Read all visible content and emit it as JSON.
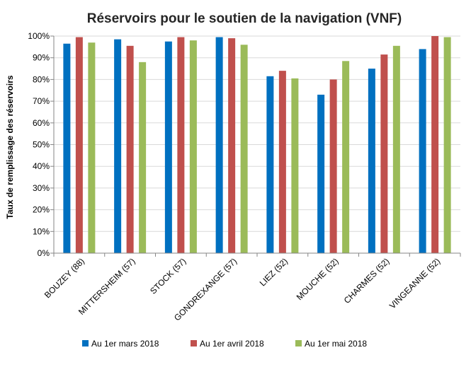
{
  "chart_data": {
    "type": "bar",
    "title": "Réservoirs pour le soutien de la navigation (VNF)",
    "xlabel": "",
    "ylabel": "Taux de remplissage des réservoirs",
    "ylim": [
      0,
      100
    ],
    "yticks": [
      "0%",
      "10%",
      "20%",
      "30%",
      "40%",
      "50%",
      "60%",
      "70%",
      "80%",
      "90%",
      "100%"
    ],
    "categories": [
      "BOUZEY (88)",
      "MITTERSHEIM (57)",
      "STOCK (57)",
      "GONDREXANGE (57)",
      "LIEZ (52)",
      "MOUCHE (52)",
      "CHARMES (52)",
      "VINGEANNE (52)"
    ],
    "series": [
      {
        "name": "Au 1er mars 2018",
        "color": "#0070c0",
        "values": [
          96.5,
          98.5,
          97.5,
          99.5,
          81.5,
          73,
          85,
          94
        ]
      },
      {
        "name": "Au 1er avril 2018",
        "color": "#c0504d",
        "values": [
          99.5,
          95.5,
          99.5,
          99,
          84,
          80,
          91.5,
          100
        ]
      },
      {
        "name": "Au 1er mai 2018",
        "color": "#9bbb59",
        "values": [
          97,
          88,
          98,
          96,
          80.5,
          88.5,
          95.5,
          99.5
        ]
      }
    ],
    "grid": true,
    "legend_position": "bottom"
  }
}
